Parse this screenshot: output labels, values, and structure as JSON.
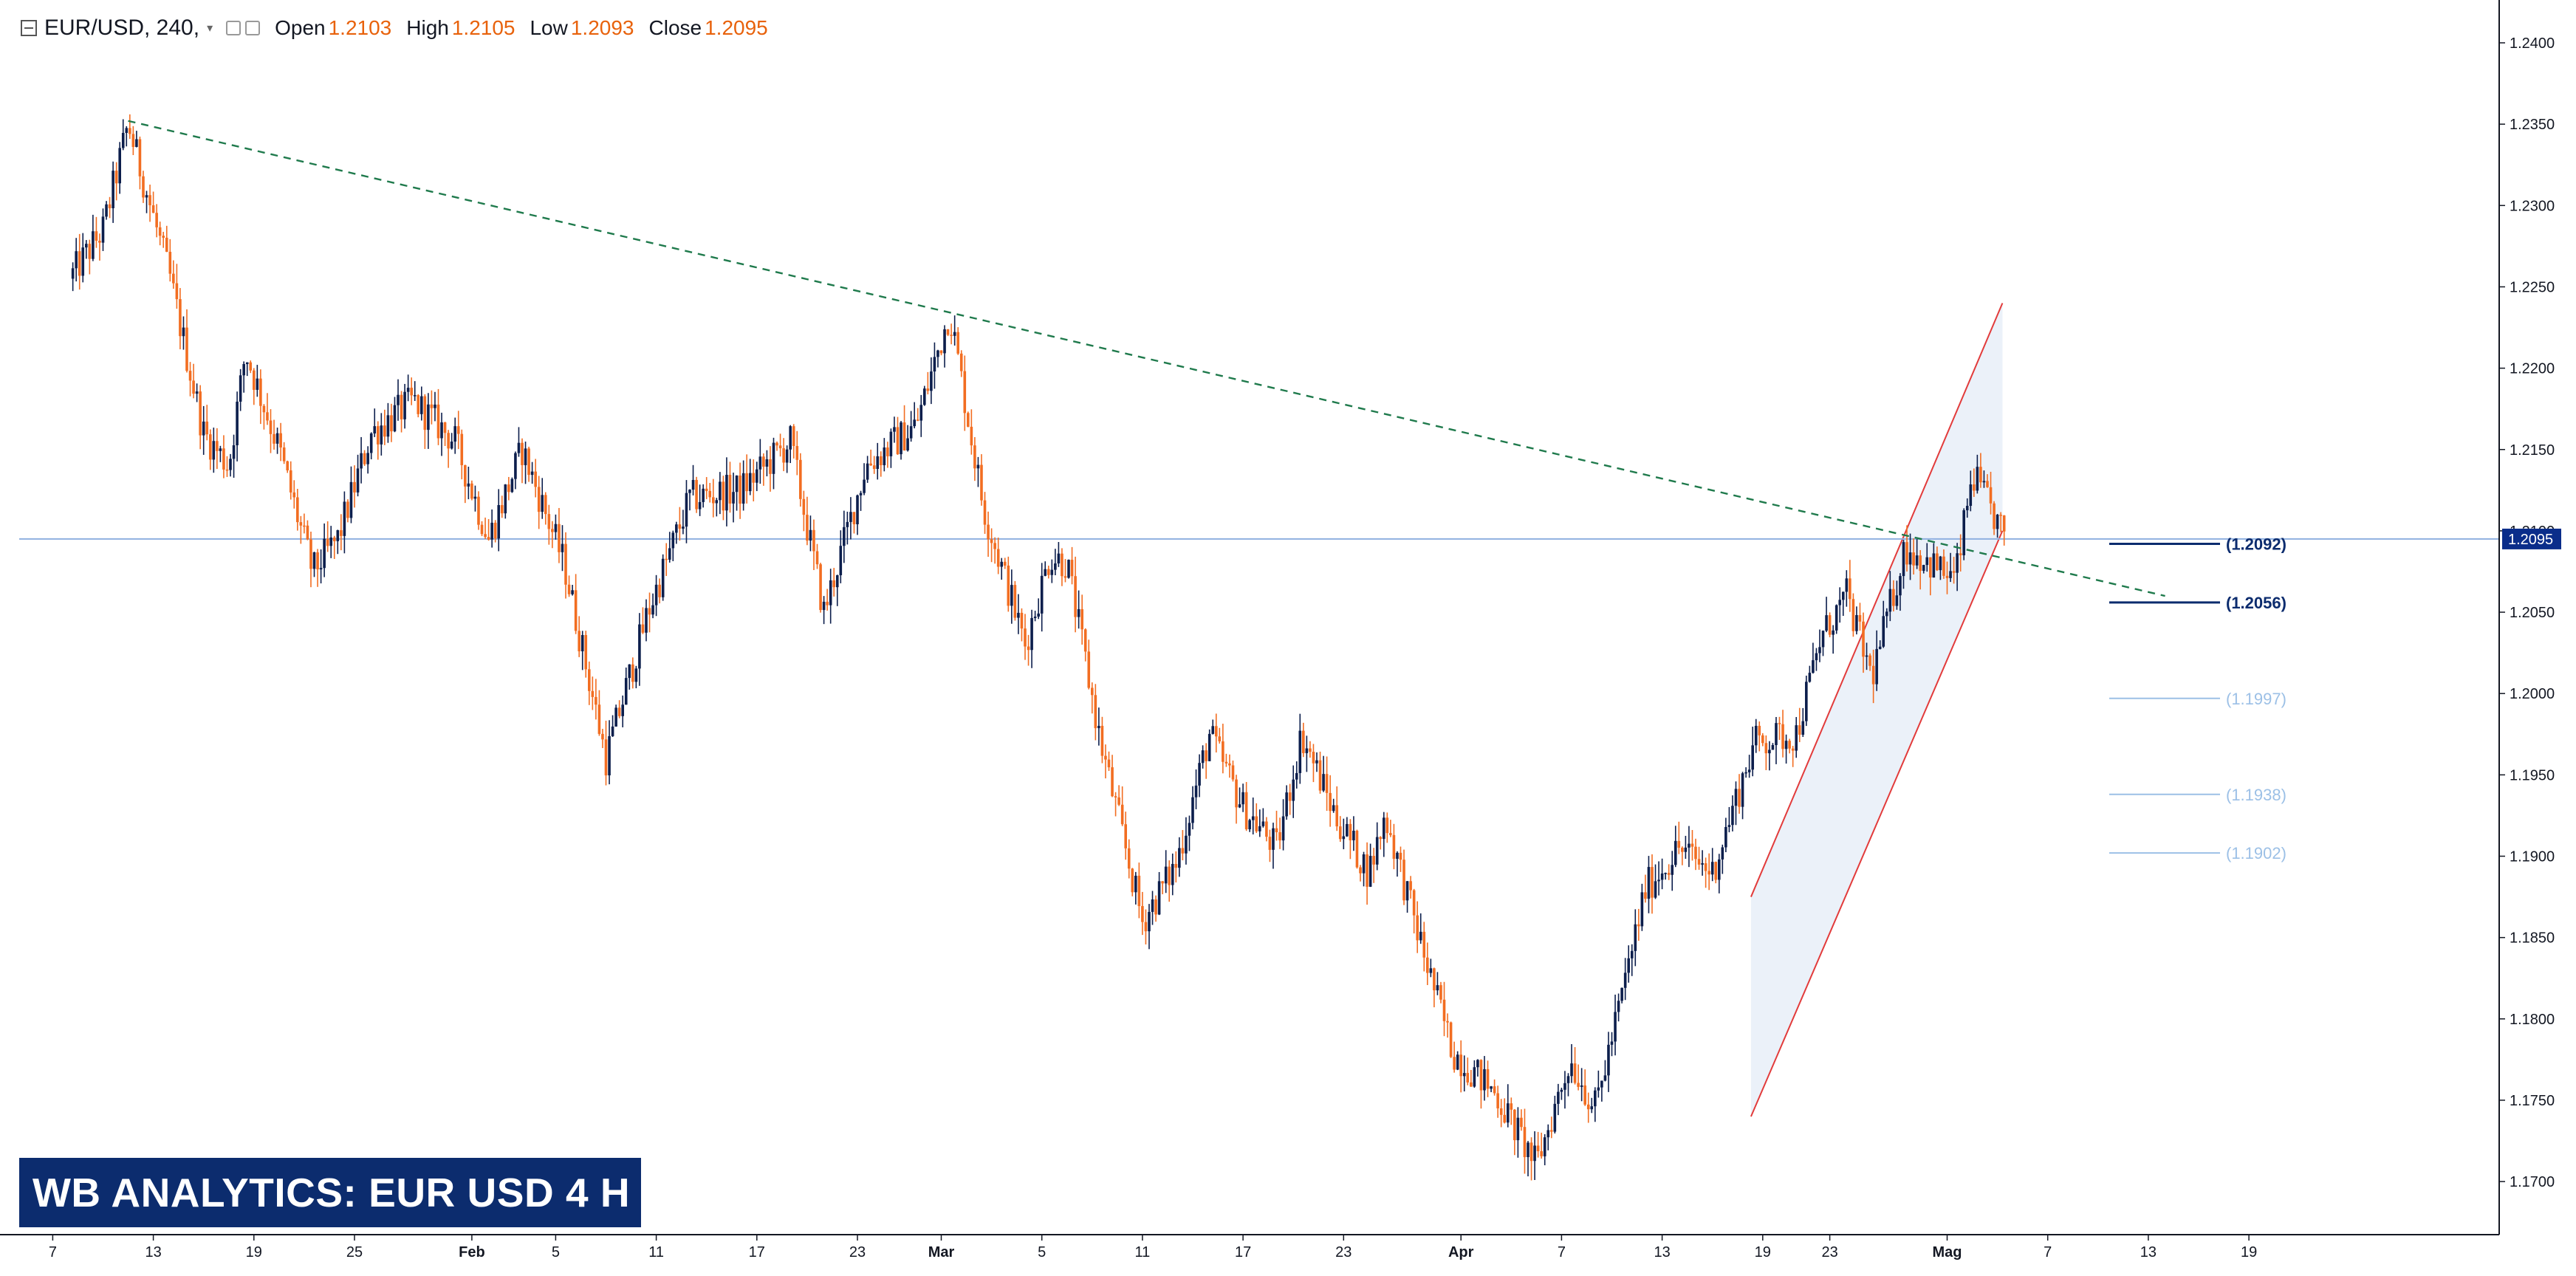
{
  "header": {
    "symbol": "EUR/USD, 240,",
    "open_label": "Open",
    "open_value": "1.2103",
    "high_label": "High",
    "high_value": "1.2105",
    "low_label": "Low",
    "low_value": "1.2093",
    "close_label": "Close",
    "close_value": "1.2095"
  },
  "banner": {
    "text": "WB ANALYTICS: EUR USD 4 H"
  },
  "colors": {
    "up": "#0c1e4c",
    "down": "#f26d21",
    "trendline": "#1f7a4c",
    "channel": "#e23b3b",
    "channel_fill": "#e8eef8",
    "price_line": "#8fb0e0",
    "price_tag": "#0a2d8a",
    "level_dark": "#0c2c6e",
    "level_light": "#9cc0e6",
    "banner": "#0c2c6e"
  },
  "chart_data": {
    "type": "candlestick",
    "title": "EUR/USD, 240",
    "y_axis": {
      "min": 1.168,
      "max": 1.242,
      "ticks": [
        "1.2400",
        "1.2350",
        "1.2300",
        "1.2250",
        "1.2200",
        "1.2150",
        "1.2100",
        "1.2050",
        "1.2000",
        "1.1950",
        "1.1900",
        "1.1850",
        "1.1800",
        "1.1750",
        "1.1700"
      ]
    },
    "x_axis": {
      "ticks": [
        "7",
        "13",
        "19",
        "25",
        "Feb",
        "5",
        "11",
        "17",
        "23",
        "Mar",
        "5",
        "11",
        "17",
        "23",
        "Apr",
        "7",
        "13",
        "19",
        "23",
        "Mag",
        "7",
        "13",
        "19"
      ]
    },
    "price_path": [
      {
        "day": 3,
        "price": 1.2255
      },
      {
        "day": 5,
        "price": 1.2285
      },
      {
        "day": 6.5,
        "price": 1.235
      },
      {
        "day": 9,
        "price": 1.2255
      },
      {
        "day": 11,
        "price": 1.216
      },
      {
        "day": 12.5,
        "price": 1.214
      },
      {
        "day": 13.5,
        "price": 1.221
      },
      {
        "day": 15.5,
        "price": 1.215
      },
      {
        "day": 17.5,
        "price": 1.2075
      },
      {
        "day": 19,
        "price": 1.2095
      },
      {
        "day": 21,
        "price": 1.216
      },
      {
        "day": 23.5,
        "price": 1.218
      },
      {
        "day": 26,
        "price": 1.2155
      },
      {
        "day": 28,
        "price": 1.2095
      },
      {
        "day": 30,
        "price": 1.215
      },
      {
        "day": 32.5,
        "price": 1.208
      },
      {
        "day": 35,
        "price": 1.196
      },
      {
        "day": 37.5,
        "price": 1.205
      },
      {
        "day": 40,
        "price": 1.212
      },
      {
        "day": 43,
        "price": 1.2125
      },
      {
        "day": 46,
        "price": 1.2155
      },
      {
        "day": 48,
        "price": 1.205
      },
      {
        "day": 50.5,
        "price": 1.214
      },
      {
        "day": 53.5,
        "price": 1.2165
      },
      {
        "day": 55.5,
        "price": 1.2235
      },
      {
        "day": 57.5,
        "price": 1.2115
      },
      {
        "day": 60,
        "price": 1.203
      },
      {
        "day": 61.5,
        "price": 1.2085
      },
      {
        "day": 62.5,
        "price": 1.208
      },
      {
        "day": 64.5,
        "price": 1.197
      },
      {
        "day": 67,
        "price": 1.186
      },
      {
        "day": 69,
        "price": 1.1895
      },
      {
        "day": 71,
        "price": 1.1975
      },
      {
        "day": 73,
        "price": 1.193
      },
      {
        "day": 75,
        "price": 1.1905
      },
      {
        "day": 76.5,
        "price": 1.1975
      },
      {
        "day": 78.5,
        "price": 1.1925
      },
      {
        "day": 80.5,
        "price": 1.189
      },
      {
        "day": 81.5,
        "price": 1.1925
      },
      {
        "day": 83.5,
        "price": 1.185
      },
      {
        "day": 85.5,
        "price": 1.178
      },
      {
        "day": 88,
        "price": 1.1755
      },
      {
        "day": 90.5,
        "price": 1.171
      },
      {
        "day": 92.5,
        "price": 1.1775
      },
      {
        "day": 94,
        "price": 1.1745
      },
      {
        "day": 95.5,
        "price": 1.181
      },
      {
        "day": 97,
        "price": 1.188
      },
      {
        "day": 99,
        "price": 1.1905
      },
      {
        "day": 101,
        "price": 1.189
      },
      {
        "day": 103.5,
        "price": 1.197
      },
      {
        "day": 106,
        "price": 1.1975
      },
      {
        "day": 107.5,
        "price": 1.2035
      },
      {
        "day": 109,
        "price": 1.206
      },
      {
        "day": 110.5,
        "price": 1.201
      },
      {
        "day": 112.5,
        "price": 1.209
      },
      {
        "day": 114,
        "price": 1.208
      },
      {
        "day": 115.5,
        "price": 1.207
      },
      {
        "day": 116.5,
        "price": 1.2135
      },
      {
        "day": 117.5,
        "price": 1.2115
      },
      {
        "day": 118.5,
        "price": 1.2095
      }
    ],
    "trendline": {
      "from": {
        "day": 6.5,
        "price": 1.2352
      },
      "to": {
        "day": 128,
        "price": 1.206
      },
      "style": "dashed"
    },
    "channel": {
      "lower": {
        "from": {
          "day": 103.3,
          "price": 1.174
        },
        "to": {
          "day": 118.3,
          "price": 1.21
        }
      },
      "upper": {
        "from": {
          "day": 103.3,
          "price": 1.1875
        },
        "to": {
          "day": 118.3,
          "price": 1.224
        }
      }
    },
    "current_price": {
      "value": 1.2095,
      "label": "1.2095"
    },
    "levels": [
      {
        "value": 1.2092,
        "label": "(1.2092)",
        "tone": "dark"
      },
      {
        "value": 1.2056,
        "label": "(1.2056)",
        "tone": "dark"
      },
      {
        "value": 1.1997,
        "label": "(1.1997)",
        "tone": "light"
      },
      {
        "value": 1.1938,
        "label": "(1.1938)",
        "tone": "light"
      },
      {
        "value": 1.1902,
        "label": "(1.1902)",
        "tone": "light"
      }
    ]
  }
}
